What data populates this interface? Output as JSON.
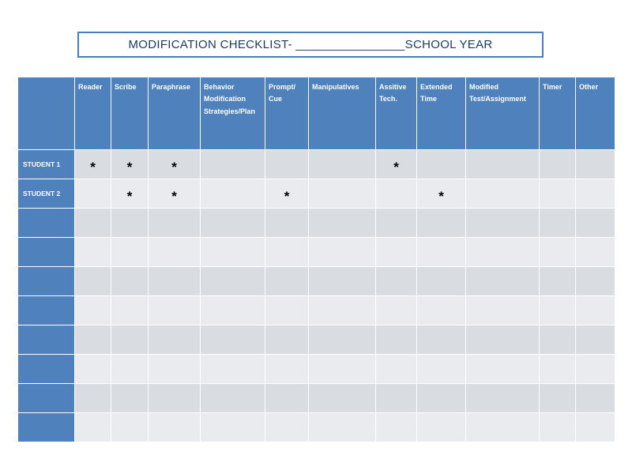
{
  "title": "MODIFICATION CHECKLIST- ________________SCHOOL YEAR",
  "table": {
    "columns": [
      "",
      "Reader",
      "Scribe",
      "Paraphrase",
      "Behavior\nModification\nStrategies/Plan",
      "Prompt/\nCue",
      "Manipulatives",
      "Assitive\nTech.",
      "Extended\nTime",
      "Modified\nTest/Assignment",
      "Timer",
      "Other"
    ],
    "rows": [
      {
        "label": "STUDENT 1",
        "cells": [
          "*",
          "*",
          "*",
          "",
          "",
          "",
          "*",
          "",
          "",
          "",
          ""
        ]
      },
      {
        "label": "STUDENT 2",
        "cells": [
          "",
          "*",
          "*",
          "",
          "*",
          "",
          "",
          "*",
          "",
          "",
          ""
        ]
      },
      {
        "label": "",
        "cells": [
          "",
          "",
          "",
          "",
          "",
          "",
          "",
          "",
          "",
          "",
          ""
        ]
      },
      {
        "label": "",
        "cells": [
          "",
          "",
          "",
          "",
          "",
          "",
          "",
          "",
          "",
          "",
          ""
        ]
      },
      {
        "label": "",
        "cells": [
          "",
          "",
          "",
          "",
          "",
          "",
          "",
          "",
          "",
          "",
          ""
        ]
      },
      {
        "label": "",
        "cells": [
          "",
          "",
          "",
          "",
          "",
          "",
          "",
          "",
          "",
          "",
          ""
        ]
      },
      {
        "label": "",
        "cells": [
          "",
          "",
          "",
          "",
          "",
          "",
          "",
          "",
          "",
          "",
          ""
        ]
      },
      {
        "label": "",
        "cells": [
          "",
          "",
          "",
          "",
          "",
          "",
          "",
          "",
          "",
          "",
          ""
        ]
      },
      {
        "label": "",
        "cells": [
          "",
          "",
          "",
          "",
          "",
          "",
          "",
          "",
          "",
          "",
          ""
        ]
      },
      {
        "label": "",
        "cells": [
          "",
          "",
          "",
          "",
          "",
          "",
          "",
          "",
          "",
          "",
          ""
        ]
      }
    ]
  },
  "colors": {
    "header_blue": "#4f81bd",
    "band_dark": "#d9dce1",
    "band_light": "#e9ebee",
    "title_border": "#4a7ebb",
    "title_text": "#1f3864"
  }
}
